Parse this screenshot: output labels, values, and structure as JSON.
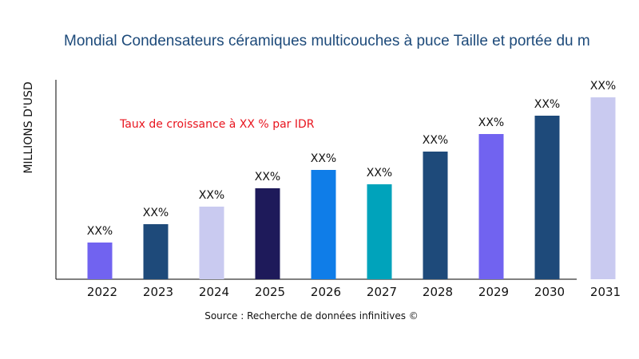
{
  "chart_data": {
    "type": "bar",
    "title": "Mondial Condensateurs céramiques multicouches à puce Taille et portée du m",
    "ylabel": "MILLIONS D'USD",
    "xlabel": "",
    "categories": [
      "2022",
      "2023",
      "2024",
      "2025",
      "2026",
      "2027",
      "2028",
      "2029",
      "2030",
      "2031"
    ],
    "values": [
      46,
      69,
      91,
      114,
      137,
      119,
      160,
      182,
      205,
      228
    ],
    "data_labels": [
      "XX%",
      "XX%",
      "XX%",
      "XX%",
      "XX%",
      "XX%",
      "XX%",
      "XX%",
      "XX%",
      "XX%"
    ],
    "colors": [
      "#7163f0",
      "#1e4a7a",
      "#c9caf0",
      "#1e1a5a",
      "#0f7de8",
      "#00a3bb",
      "#1e4a7a",
      "#7163f0",
      "#1e4a7a",
      "#c9caf0"
    ],
    "ylim": [
      0,
      250
    ],
    "grid": false,
    "annotation": "Taux de croissance à XX % par IDR",
    "annotation_color": "#e8141e",
    "source": "Source : Recherche de données infinitives ©"
  }
}
